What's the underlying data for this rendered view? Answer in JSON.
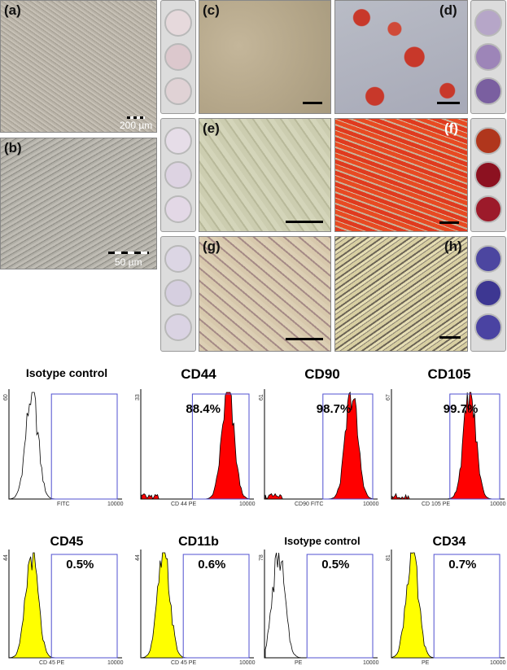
{
  "panels": {
    "a": {
      "label": "(a)",
      "scale": "200 µm"
    },
    "b": {
      "label": "(b)",
      "scale": "50 µm"
    },
    "c": {
      "label": "(c)"
    },
    "d": {
      "label": "(d)"
    },
    "e": {
      "label": "(e)"
    },
    "f": {
      "label": "(f)"
    },
    "g": {
      "label": "(g)"
    },
    "h": {
      "label": "(h)"
    }
  },
  "colors": {
    "positive_fill": "#ff0000",
    "negative_fill": "#ffff00",
    "gate": "#5050d0"
  },
  "histograms": [
    {
      "title": "Isotype control",
      "ymax": "60",
      "xlabel": "FITC",
      "xmax": "10000",
      "percent": "",
      "fill": "none",
      "peak": 0.2
    },
    {
      "title": "CD44",
      "ymax": "33",
      "xlabel": "CD 44 PE",
      "xmax": "10000",
      "percent": "88.4%",
      "fill": "red",
      "peak": 0.78
    },
    {
      "title": "CD90",
      "ymax": "61",
      "xlabel": "CD90 FITC",
      "xmax": "10000",
      "percent": "98.7%",
      "fill": "red",
      "peak": 0.78
    },
    {
      "title": "CD105",
      "ymax": "67",
      "xlabel": "CD 105 PE",
      "xmax": "10000",
      "percent": "99.7%",
      "fill": "red",
      "peak": 0.7
    },
    {
      "title": "CD45",
      "ymax": "44",
      "xlabel": "CD 45 PE",
      "xmax": "10000",
      "percent": "0.5%",
      "fill": "yellow",
      "peak": 0.2
    },
    {
      "title": "CD11b",
      "ymax": "44",
      "xlabel": "CD 45 PE",
      "xmax": "10000",
      "percent": "0.6%",
      "fill": "yellow",
      "peak": 0.2
    },
    {
      "title": "Isotype control",
      "ymax": "78",
      "xlabel": "PE",
      "xmax": "10000",
      "percent": "0.5%",
      "fill": "none",
      "peak": 0.12
    },
    {
      "title": "CD34",
      "ymax": "81",
      "xlabel": "PE",
      "xmax": "10000",
      "percent": "0.7%",
      "fill": "yellow",
      "peak": 0.18
    }
  ]
}
